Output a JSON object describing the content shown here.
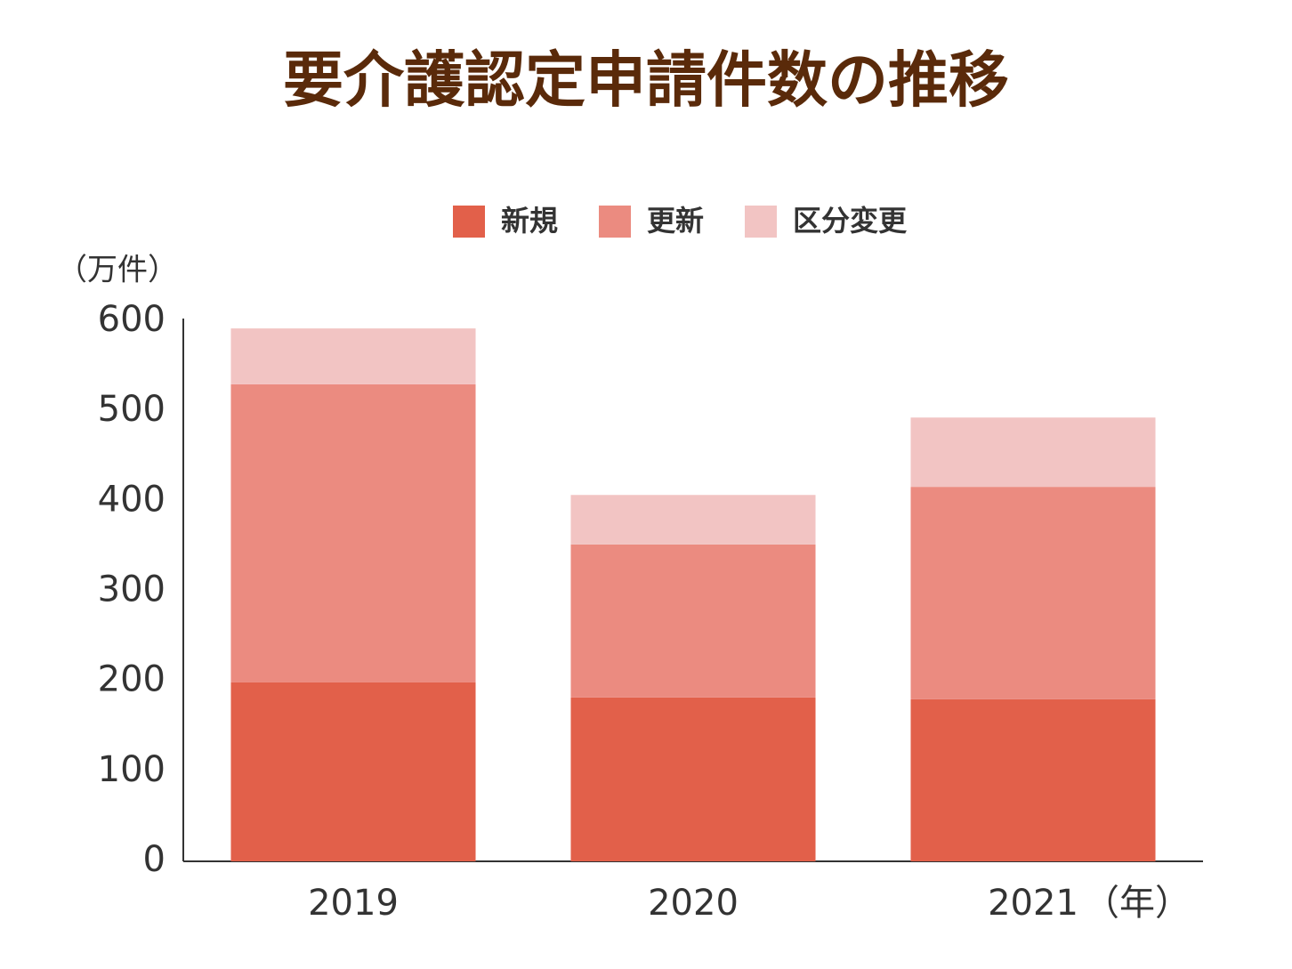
{
  "chart_data": {
    "type": "stacked-bar",
    "title": "要介護認定申請件数の推移",
    "y_axis_label": "（万件）",
    "x_axis_label": "（年）",
    "categories": [
      "2019",
      "2020",
      "2021"
    ],
    "series": [
      {
        "name": "新規",
        "color": "#e2604a",
        "values": [
          199,
          182,
          180
        ]
      },
      {
        "name": "更新",
        "color": "#eb8b80",
        "values": [
          331,
          170,
          236
        ]
      },
      {
        "name": "区分変更",
        "color": "#f2c4c3",
        "values": [
          62,
          55,
          77
        ]
      }
    ],
    "ylim": [
      0,
      600
    ],
    "yticks": [
      0,
      100,
      200,
      300,
      400,
      500,
      600
    ],
    "grid": false,
    "legend": "top"
  }
}
